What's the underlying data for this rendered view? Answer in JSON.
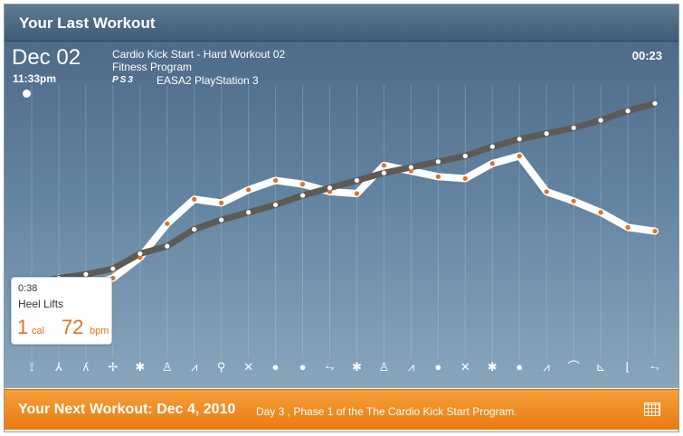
{
  "header": {
    "title": "Your Last Workout"
  },
  "session": {
    "date": "Dec 02",
    "time": "11:33pm",
    "program_title": "Cardio Kick Start - Hard Workout 02",
    "program_type": "Fitness Program",
    "platform_logo": "PS3",
    "platform": "EASA2 PlayStation 3",
    "duration": "00:23"
  },
  "tooltip": {
    "time": "0:38",
    "exercise": "Heel Lifts",
    "calories": "1",
    "calories_unit": "cal",
    "bpm": "72",
    "bpm_unit": "bpm"
  },
  "chart_data": {
    "type": "line",
    "x": [
      1,
      2,
      3,
      4,
      5,
      6,
      7,
      8,
      9,
      10,
      11,
      12,
      13,
      14,
      15,
      16,
      17,
      18,
      19,
      20,
      21,
      22,
      23,
      24
    ],
    "series": [
      {
        "name": "",
        "color": "#ffffff",
        "values": [
          25,
          33,
          29,
          33,
          44,
          62,
          75,
          73,
          80,
          85,
          83,
          79,
          78,
          93,
          90,
          87,
          86,
          94,
          98,
          79,
          74,
          68,
          60,
          58
        ]
      },
      {
        "name": "",
        "color": "#5e5a56",
        "values": [
          30,
          33,
          35,
          38,
          46,
          50,
          59,
          64,
          68,
          72,
          77,
          81,
          85,
          89,
          92,
          95,
          98,
          103,
          107,
          110,
          113,
          117,
          122,
          126
        ]
      }
    ],
    "colors": {
      "series1_markers": "#e8701e",
      "series2_markers": "#ffffff"
    }
  },
  "exercise_icons": [
    "kick-icon",
    "lunge-icon",
    "squat-icon",
    "stretch-icon",
    "jumping-jack-icon",
    "arm-raise-icon",
    "push-up-icon",
    "bike-icon",
    "jump-icon",
    "ball-icon",
    "ball-icon",
    "rowing-icon",
    "jumping-jack-icon",
    "arm-raise-icon",
    "push-up-icon",
    "ball-icon",
    "jump-icon",
    "jumping-jack-icon",
    "ball-icon",
    "push-up-icon",
    "sit-up-icon",
    "crunch-icon",
    "leg-lift-icon",
    "rowing-icon"
  ],
  "footer": {
    "next_workout": "Your Next Workout: Dec 4, 2010",
    "detail": "Day 3 , Phase 1 of the The Cardio Kick Start Program.",
    "calendar_icon": "calendar-icon"
  }
}
